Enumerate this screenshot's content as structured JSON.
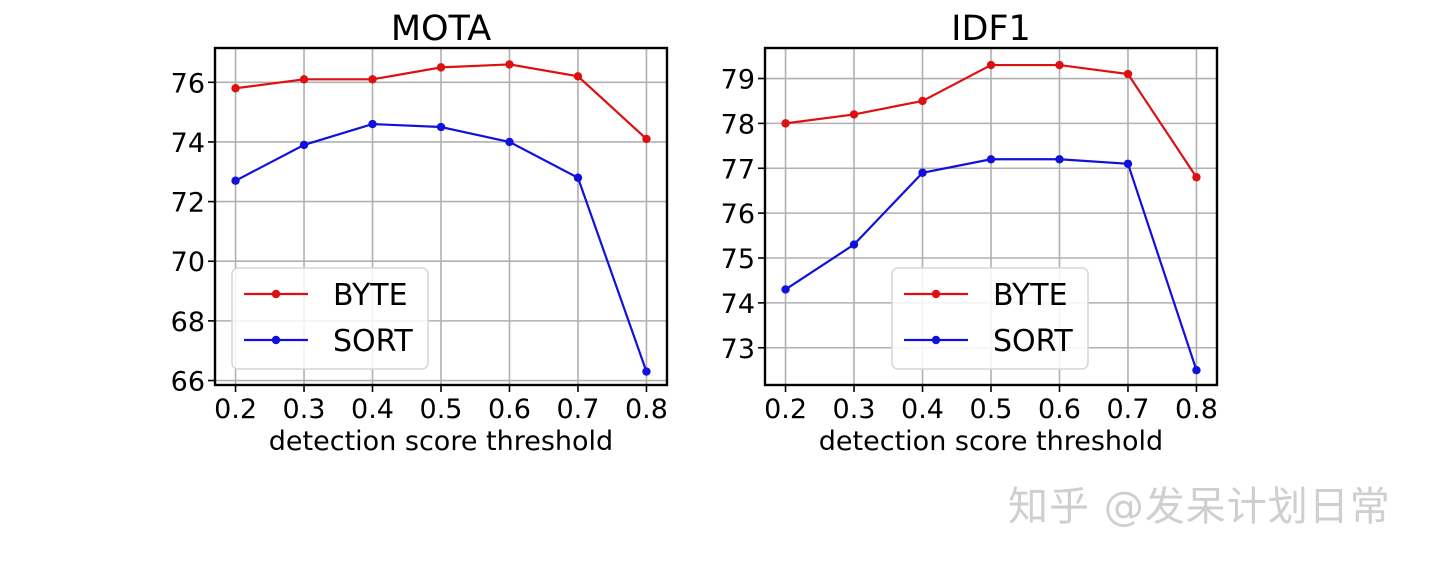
{
  "watermark": "知乎 @发呆计划日常",
  "chart_data": [
    {
      "type": "line",
      "title": "MOTA",
      "xlabel": "detection score threshold",
      "ylabel": "",
      "x": [
        0.2,
        0.3,
        0.4,
        0.5,
        0.6,
        0.7,
        0.8
      ],
      "x_ticks": [
        "0.2",
        "0.3",
        "0.4",
        "0.5",
        "0.6",
        "0.7",
        "0.8"
      ],
      "y_ticks": [
        66,
        68,
        70,
        72,
        74,
        76
      ],
      "y_tick_labels": [
        "66",
        "68",
        "70",
        "72",
        "74",
        "76"
      ],
      "xlim": [
        0.17,
        0.83
      ],
      "ylim": [
        65.85,
        77.15
      ],
      "grid": true,
      "legend": "lower-left",
      "series": [
        {
          "name": "BYTE",
          "color": "#dd1111",
          "values": [
            75.8,
            76.1,
            76.1,
            76.5,
            76.6,
            76.2,
            74.1
          ]
        },
        {
          "name": "SORT",
          "color": "#1111dd",
          "values": [
            72.7,
            73.9,
            74.6,
            74.5,
            74.0,
            72.8,
            66.3
          ]
        }
      ]
    },
    {
      "type": "line",
      "title": "IDF1",
      "xlabel": "detection score threshold",
      "ylabel": "",
      "x": [
        0.2,
        0.3,
        0.4,
        0.5,
        0.6,
        0.7,
        0.8
      ],
      "x_ticks": [
        "0.2",
        "0.3",
        "0.4",
        "0.5",
        "0.6",
        "0.7",
        "0.8"
      ],
      "y_ticks": [
        73,
        74,
        75,
        76,
        77,
        78,
        79
      ],
      "y_tick_labels": [
        "73",
        "74",
        "75",
        "76",
        "77",
        "78",
        "79"
      ],
      "xlim": [
        0.17,
        0.83
      ],
      "ylim": [
        72.17,
        79.68
      ],
      "grid": true,
      "legend": "lower-center",
      "series": [
        {
          "name": "BYTE",
          "color": "#dd1111",
          "values": [
            78.0,
            78.2,
            78.5,
            79.3,
            79.3,
            79.1,
            76.8
          ]
        },
        {
          "name": "SORT",
          "color": "#1111dd",
          "values": [
            74.3,
            75.3,
            76.9,
            77.2,
            77.2,
            77.1,
            72.5
          ]
        }
      ]
    }
  ]
}
